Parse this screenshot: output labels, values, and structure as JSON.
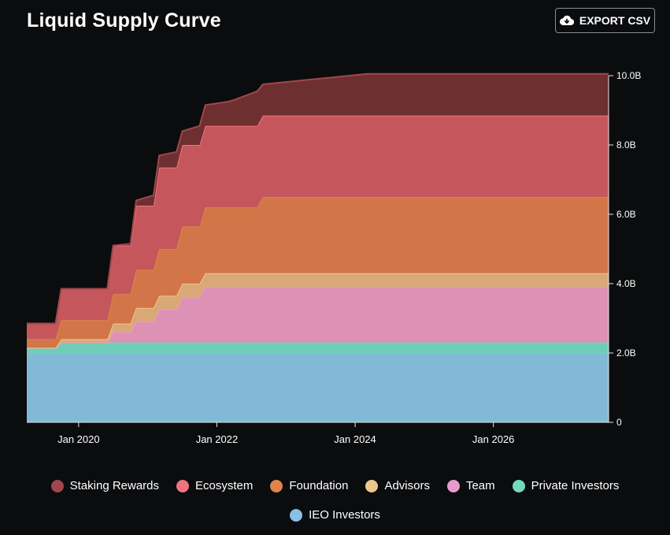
{
  "page": {
    "title": "Liquid Supply Curve",
    "export_label": "EXPORT CSV",
    "export_icon": "cloud-download-icon"
  },
  "chart_data": {
    "type": "area",
    "stacked": true,
    "step": true,
    "x_unit": "date",
    "x": [
      "2019-04",
      "2019-09",
      "2019-10",
      "2020-01",
      "2020-02",
      "2020-06",
      "2020-07",
      "2020-10",
      "2020-11",
      "2021-02",
      "2021-03",
      "2021-06",
      "2021-07",
      "2021-10",
      "2021-11",
      "2022-03",
      "2022-04",
      "2022-08",
      "2022-09",
      "2023-03",
      "2023-09",
      "2024-03",
      "2024-09",
      "2025-03",
      "2025-09",
      "2026-03",
      "2026-09",
      "2027-03",
      "2027-09"
    ],
    "xticks": [
      "Jan 2020",
      "Jan 2022",
      "Jan 2024",
      "Jan 2026"
    ],
    "xtick_dates": [
      "2020-01",
      "2022-01",
      "2024-01",
      "2026-01"
    ],
    "yticks": [
      "0",
      "2.0B",
      "4.0B",
      "6.0B",
      "8.0B",
      "10.0B"
    ],
    "ytick_values": [
      0,
      2000000000,
      4000000000,
      6000000000,
      8000000000,
      10000000000
    ],
    "ylim": [
      0,
      10000000000
    ],
    "grid": false,
    "legend_position": "bottom",
    "series": [
      {
        "name": "IEO Investors",
        "color": "#82b9d6",
        "line": "#88bfe5",
        "values": [
          2000000000,
          2000000000,
          2000000000,
          2000000000,
          2000000000,
          2000000000,
          2000000000,
          2000000000,
          2000000000,
          2000000000,
          2000000000,
          2000000000,
          2000000000,
          2000000000,
          2000000000,
          2000000000,
          2000000000,
          2000000000,
          2000000000,
          2000000000,
          2000000000,
          2000000000,
          2000000000,
          2000000000,
          2000000000,
          2000000000,
          2000000000,
          2000000000,
          2000000000
        ]
      },
      {
        "name": "Private Investors",
        "color": "#6fcdb7",
        "line": "#72d8bf",
        "values": [
          150000000,
          150000000,
          300000000,
          300000000,
          300000000,
          300000000,
          300000000,
          300000000,
          300000000,
          300000000,
          300000000,
          300000000,
          300000000,
          300000000,
          300000000,
          300000000,
          300000000,
          300000000,
          300000000,
          300000000,
          300000000,
          300000000,
          300000000,
          300000000,
          300000000,
          300000000,
          300000000,
          300000000,
          300000000
        ]
      },
      {
        "name": "Team",
        "color": "#dd91b4",
        "line": "#e89ad0",
        "values": [
          0,
          0,
          0,
          0,
          0,
          0,
          300000000,
          300000000,
          600000000,
          600000000,
          950000000,
          950000000,
          1300000000,
          1300000000,
          1600000000,
          1600000000,
          1600000000,
          1600000000,
          1600000000,
          1600000000,
          1600000000,
          1600000000,
          1600000000,
          1600000000,
          1600000000,
          1600000000,
          1600000000,
          1600000000,
          1600000000
        ]
      },
      {
        "name": "Advisors",
        "color": "#d9a877",
        "line": "#edc88a",
        "values": [
          0,
          0,
          100000000,
          100000000,
          100000000,
          100000000,
          250000000,
          250000000,
          400000000,
          400000000,
          400000000,
          400000000,
          400000000,
          400000000,
          400000000,
          400000000,
          400000000,
          400000000,
          400000000,
          400000000,
          400000000,
          400000000,
          400000000,
          400000000,
          400000000,
          400000000,
          400000000,
          400000000,
          400000000
        ]
      },
      {
        "name": "Foundation",
        "color": "#d27548",
        "line": "#e0834b",
        "values": [
          250000000,
          250000000,
          550000000,
          550000000,
          550000000,
          550000000,
          850000000,
          850000000,
          1100000000,
          1100000000,
          1350000000,
          1350000000,
          1650000000,
          1650000000,
          1900000000,
          1900000000,
          1900000000,
          1900000000,
          2200000000,
          2200000000,
          2200000000,
          2200000000,
          2200000000,
          2200000000,
          2200000000,
          2200000000,
          2200000000,
          2200000000,
          2200000000
        ]
      },
      {
        "name": "Ecosystem",
        "color": "#c5575c",
        "line": "#f0747e",
        "values": [
          450000000,
          450000000,
          900000000,
          900000000,
          900000000,
          900000000,
          1400000000,
          1400000000,
          1850000000,
          1850000000,
          2350000000,
          2350000000,
          2350000000,
          2350000000,
          2350000000,
          2350000000,
          2350000000,
          2350000000,
          2350000000,
          2350000000,
          2350000000,
          2350000000,
          2350000000,
          2350000000,
          2350000000,
          2350000000,
          2350000000,
          2350000000,
          2350000000
        ]
      },
      {
        "name": "Staking Rewards",
        "color": "#6e2f31",
        "line": "#a0474b",
        "values": [
          0,
          0,
          0,
          0,
          0,
          0,
          0,
          50000000,
          150000000,
          300000000,
          350000000,
          450000000,
          400000000,
          550000000,
          600000000,
          700000000,
          750000000,
          1000000000,
          900000000,
          1000000000,
          1100000000,
          1200000000,
          1200000000,
          1200000000,
          1200000000,
          1200000000,
          1200000000,
          1200000000,
          1200000000
        ]
      }
    ],
    "legend_order": [
      "Staking Rewards",
      "Ecosystem",
      "Foundation",
      "Advisors",
      "Team",
      "Private Investors",
      "IEO Investors"
    ]
  }
}
